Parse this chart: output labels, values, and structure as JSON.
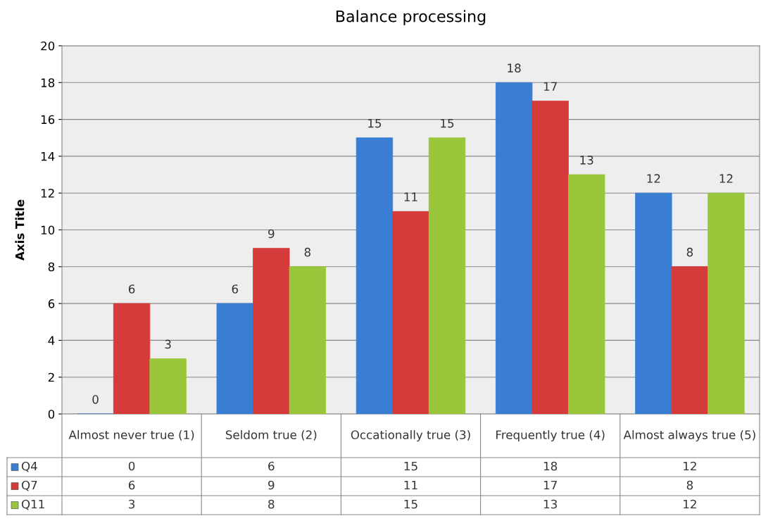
{
  "chart_data": {
    "type": "bar",
    "title": "Balance processing",
    "ylabel": "Axis Title",
    "categories": [
      "Almost never true (1)",
      "Seldom true (2)",
      "Occationally true (3)",
      "Frequently true (4)",
      "Almost always true (5)"
    ],
    "series": [
      {
        "name": "Q4",
        "color": "#3a7ed4",
        "values": [
          0,
          6,
          15,
          18,
          12
        ],
        "value_labels": [
          "0",
          "6",
          "15",
          "18",
          "12"
        ]
      },
      {
        "name": "Q7",
        "color": "#d63b3b",
        "values": [
          6,
          9,
          11,
          17,
          8
        ],
        "value_labels": [
          "6",
          "9",
          "11",
          "17",
          "8"
        ]
      },
      {
        "name": "Q11",
        "color": "#9ac63c",
        "values": [
          3,
          8,
          15,
          13,
          12
        ],
        "value_labels": [
          "3",
          "8",
          "15",
          "13",
          "12"
        ]
      }
    ],
    "ylim": [
      0,
      20
    ],
    "yticks": [
      0,
      2,
      4,
      6,
      8,
      10,
      12,
      14,
      16,
      18,
      20
    ],
    "grid": "y",
    "legend": "bottom",
    "annotations": [
      "0",
      "6",
      "15",
      "18",
      "12",
      "6",
      "9",
      "11",
      "17",
      "8",
      "3",
      "8",
      "15",
      "13",
      "12"
    ]
  }
}
